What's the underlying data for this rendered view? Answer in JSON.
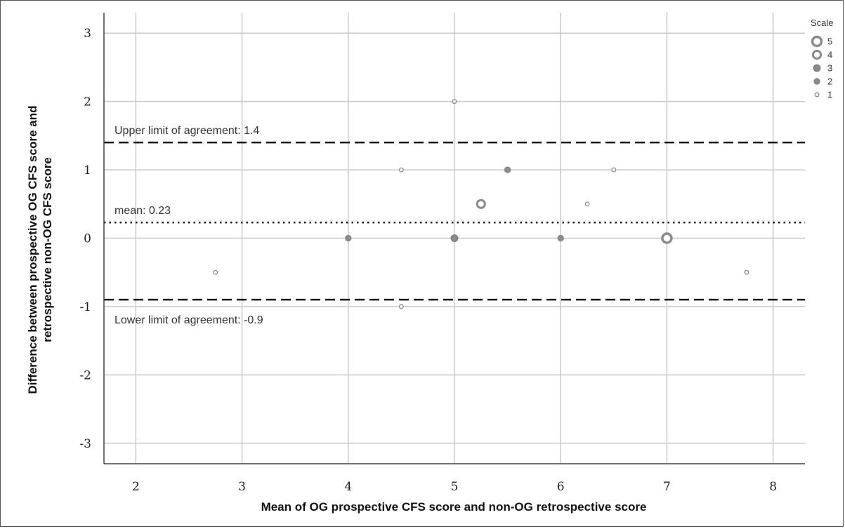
{
  "chart_data": {
    "type": "scatter",
    "xlabel": "Mean of OG prospective CFS score and non-OG retrospective score",
    "ylabel_lines": [
      "Difference between prospective OG CFS score and",
      "retrospective non-OG CFS score"
    ],
    "xlim": [
      1.7,
      8.3
    ],
    "ylim": [
      -3.3,
      3.3
    ],
    "x_ticks": [
      2,
      3,
      4,
      5,
      6,
      7,
      8
    ],
    "y_ticks": [
      3,
      2,
      1,
      0,
      -1,
      -2,
      -3
    ],
    "x_tick_labels": [
      "2",
      "3",
      "4",
      "5",
      "6",
      "7",
      "8"
    ],
    "y_tick_labels": [
      "3",
      "2",
      "1",
      "0",
      "-1",
      "-2",
      "-3"
    ],
    "grid": true,
    "reference_lines": [
      {
        "y": 1.4,
        "style": "dashed",
        "label": "Upper limit of agreement: 1.4"
      },
      {
        "y": 0.23,
        "style": "dotted",
        "label": "mean: 0.23"
      },
      {
        "y": -0.9,
        "style": "dashed",
        "label": "Lower limit of agreement: -0.9"
      }
    ],
    "points": [
      {
        "x": 2.75,
        "y": -0.5,
        "scale": 1
      },
      {
        "x": 4.0,
        "y": 0.0,
        "scale": 2
      },
      {
        "x": 4.5,
        "y": 1.0,
        "scale": 1
      },
      {
        "x": 4.5,
        "y": -1.0,
        "scale": 1
      },
      {
        "x": 5.0,
        "y": 2.0,
        "scale": 1
      },
      {
        "x": 5.0,
        "y": 0.0,
        "scale": 3
      },
      {
        "x": 5.25,
        "y": 0.5,
        "scale": 4
      },
      {
        "x": 5.5,
        "y": 1.0,
        "scale": 2
      },
      {
        "x": 6.0,
        "y": 0.0,
        "scale": 2
      },
      {
        "x": 6.25,
        "y": 0.5,
        "scale": 1
      },
      {
        "x": 6.5,
        "y": 1.0,
        "scale": 1
      },
      {
        "x": 7.0,
        "y": 0.0,
        "scale": 5
      },
      {
        "x": 7.75,
        "y": -0.5,
        "scale": 1
      }
    ],
    "legend": {
      "title": "Scale",
      "placement": "top-right",
      "entries": [
        {
          "label": "5",
          "scale": 5
        },
        {
          "label": "4",
          "scale": 4
        },
        {
          "label": "3",
          "scale": 3
        },
        {
          "label": "2",
          "scale": 2
        },
        {
          "label": "1",
          "scale": 1
        }
      ]
    },
    "colors": {
      "marker": "#8a8a8a",
      "grid": "#c8c8c8",
      "axis": "#444444",
      "ref_line": "#111111"
    }
  }
}
